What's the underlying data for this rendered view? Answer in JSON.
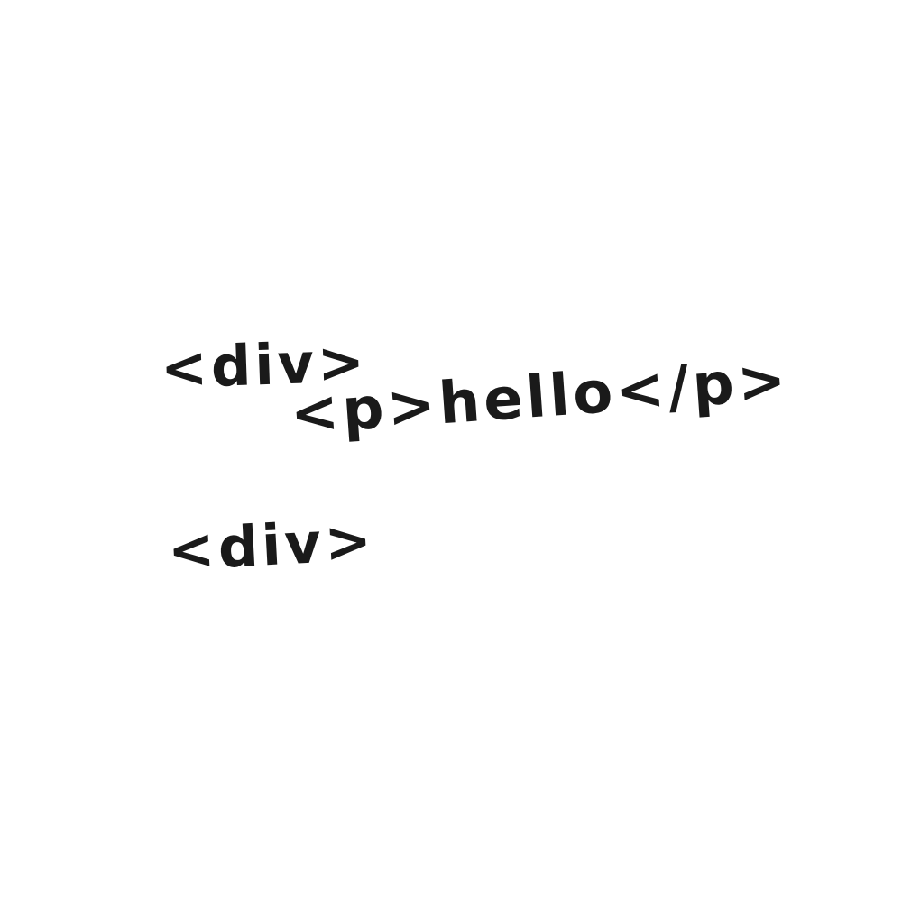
{
  "sketch": {
    "lines": [
      {
        "text": "<div>"
      },
      {
        "text": "<p>hello</p>"
      },
      {
        "text": "<div>"
      }
    ],
    "ink_color": "#1a1a1a",
    "paper_color": "#ffffff"
  }
}
